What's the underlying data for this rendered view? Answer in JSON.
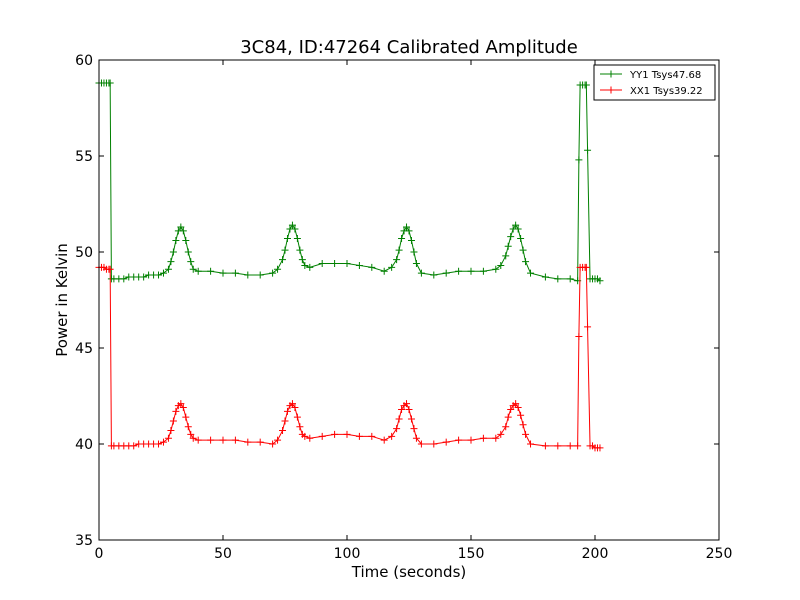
{
  "chart_data": {
    "type": "line",
    "title": "3C84, ID:47264 Calibrated Amplitude",
    "xlabel": "Time (seconds)",
    "ylabel": "Power in Kelvin",
    "xlim": [
      0,
      250
    ],
    "ylim": [
      35,
      60
    ],
    "xticks": [
      0,
      50,
      100,
      150,
      200,
      250
    ],
    "yticks": [
      35,
      40,
      45,
      50,
      55,
      60
    ],
    "grid": false,
    "legend_position": "top-right",
    "marker": "plus",
    "series": [
      {
        "name": "YY1 Tsys47.68",
        "color": "#008000",
        "x": [
          0,
          1,
          2,
          3,
          4,
          4.5,
          5,
          6,
          8,
          10,
          12,
          14,
          16,
          18,
          20,
          22,
          24,
          26,
          28,
          29,
          30,
          31,
          32,
          33,
          34,
          35,
          36,
          37,
          38,
          40,
          45,
          50,
          55,
          60,
          65,
          70,
          72,
          74,
          75,
          76,
          77,
          78,
          79,
          80,
          81,
          82,
          83,
          85,
          90,
          95,
          100,
          105,
          110,
          115,
          118,
          120,
          121,
          122,
          123,
          124,
          125,
          126,
          127,
          128,
          130,
          135,
          140,
          145,
          150,
          155,
          160,
          162,
          164,
          165,
          166,
          167,
          168,
          169,
          170,
          171,
          172,
          174,
          180,
          185,
          190,
          193,
          193.5,
          194,
          195,
          196,
          196.5,
          197,
          198,
          199,
          200,
          201,
          202
        ],
        "y": [
          58.8,
          58.8,
          58.8,
          58.8,
          58.8,
          58.8,
          48.6,
          48.6,
          48.6,
          48.6,
          48.7,
          48.7,
          48.7,
          48.7,
          48.8,
          48.8,
          48.8,
          48.9,
          49.1,
          49.5,
          50.0,
          50.6,
          51.1,
          51.3,
          51.1,
          50.6,
          50.0,
          49.5,
          49.1,
          49.0,
          49.0,
          48.9,
          48.9,
          48.8,
          48.8,
          48.9,
          49.1,
          49.6,
          50.1,
          50.7,
          51.2,
          51.4,
          51.2,
          50.7,
          50.1,
          49.6,
          49.3,
          49.2,
          49.4,
          49.4,
          49.4,
          49.3,
          49.2,
          49.0,
          49.2,
          49.6,
          50.1,
          50.7,
          51.1,
          51.3,
          51.1,
          50.6,
          50.0,
          49.4,
          48.9,
          48.8,
          48.9,
          49.0,
          49.0,
          49.0,
          49.1,
          49.3,
          49.8,
          50.3,
          50.8,
          51.2,
          51.4,
          51.2,
          50.7,
          50.1,
          49.5,
          48.9,
          48.7,
          48.6,
          48.6,
          48.5,
          54.8,
          58.7,
          58.7,
          58.7,
          58.7,
          55.3,
          48.6,
          48.6,
          48.6,
          48.6,
          48.5
        ]
      },
      {
        "name": "XX1 Tsys39.22",
        "color": "#ff0000",
        "x": [
          0,
          1,
          2,
          3,
          4,
          4.5,
          5,
          6,
          8,
          10,
          12,
          14,
          16,
          18,
          20,
          22,
          24,
          26,
          28,
          29,
          30,
          31,
          32,
          33,
          34,
          35,
          36,
          37,
          38,
          40,
          45,
          50,
          55,
          60,
          65,
          70,
          72,
          74,
          75,
          76,
          77,
          78,
          79,
          80,
          81,
          82,
          83,
          85,
          90,
          95,
          100,
          105,
          110,
          115,
          118,
          120,
          121,
          122,
          123,
          124,
          125,
          126,
          127,
          128,
          130,
          135,
          140,
          145,
          150,
          155,
          160,
          162,
          164,
          165,
          166,
          167,
          168,
          169,
          170,
          171,
          172,
          174,
          180,
          185,
          190,
          193,
          193.5,
          194,
          195,
          196,
          196.5,
          197,
          198,
          199,
          200,
          201,
          202
        ],
        "y": [
          49.2,
          49.2,
          49.2,
          49.1,
          49.1,
          49.1,
          39.9,
          39.9,
          39.9,
          39.9,
          39.9,
          39.9,
          40.0,
          40.0,
          40.0,
          40.0,
          40.0,
          40.1,
          40.3,
          40.7,
          41.2,
          41.7,
          42.0,
          42.1,
          41.9,
          41.4,
          40.9,
          40.5,
          40.3,
          40.2,
          40.2,
          40.2,
          40.2,
          40.1,
          40.1,
          40.0,
          40.2,
          40.7,
          41.2,
          41.7,
          42.0,
          42.1,
          41.9,
          41.4,
          40.9,
          40.5,
          40.4,
          40.3,
          40.4,
          40.5,
          40.5,
          40.4,
          40.4,
          40.2,
          40.4,
          40.8,
          41.3,
          41.8,
          42.0,
          42.1,
          41.8,
          41.3,
          40.8,
          40.3,
          40.0,
          40.0,
          40.1,
          40.2,
          40.2,
          40.3,
          40.3,
          40.5,
          40.9,
          41.4,
          41.8,
          42.0,
          42.1,
          41.9,
          41.5,
          41.0,
          40.5,
          40.0,
          39.9,
          39.9,
          39.9,
          39.9,
          45.6,
          49.2,
          49.2,
          49.2,
          49.2,
          46.1,
          39.9,
          39.9,
          39.8,
          39.8,
          39.8
        ]
      }
    ]
  }
}
